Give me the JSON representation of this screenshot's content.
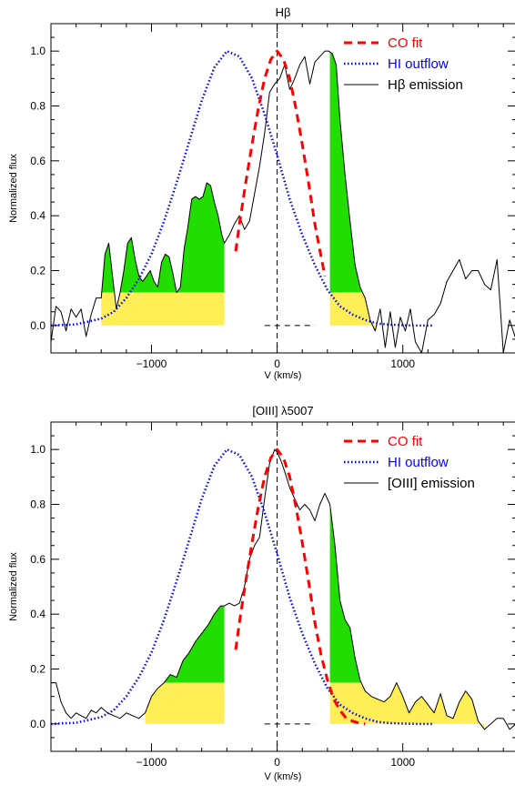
{
  "chart_data": [
    {
      "type": "line",
      "title": "Hβ",
      "xlabel": "V (km/s)",
      "ylabel": "Normalized flux",
      "xlim": [
        -1800,
        1900
      ],
      "ylim": [
        -0.1,
        1.1
      ],
      "xticks": [
        -1000,
        0,
        1000
      ],
      "xtick_labels": [
        "−1000",
        "0",
        "1000"
      ],
      "yticks": [
        0,
        0.2,
        0.4,
        0.6,
        0.8,
        1.0
      ],
      "ytick_labels": [
        "0.0",
        "0.2",
        "0.4",
        "0.6",
        "0.8",
        "1.0"
      ],
      "legend_position": "top-right",
      "zero_line_x": 0,
      "baseline_segment": {
        "x": [
          -100,
          300
        ],
        "y": 0
      },
      "colors": {
        "co": "#ff0000",
        "hi": "#0000ff",
        "emission": "#000000",
        "fill_green": "#22dd00",
        "fill_yellow": "#ffee55"
      },
      "shaded_regions": [
        {
          "x_range": [
            -1400,
            -420
          ],
          "yellow_top": 0.12
        },
        {
          "x_range": [
            420,
            800
          ],
          "yellow_top": 0.12
        }
      ],
      "series": [
        {
          "name": "CO fit",
          "style": "dashed",
          "color": "#ff0000",
          "x": [
            -330,
            -300,
            -250,
            -200,
            -150,
            -100,
            -50,
            0,
            50,
            100,
            150,
            200,
            250,
            300,
            350,
            380
          ],
          "y": [
            0.27,
            0.37,
            0.52,
            0.66,
            0.79,
            0.9,
            0.97,
            1.0,
            0.97,
            0.9,
            0.79,
            0.66,
            0.52,
            0.37,
            0.25,
            0.18
          ]
        },
        {
          "name": "HI outflow",
          "style": "dotted",
          "color": "#0000ff",
          "x": [
            -1800,
            -1600,
            -1400,
            -1300,
            -1200,
            -1100,
            -1000,
            -900,
            -800,
            -700,
            -600,
            -500,
            -400,
            -300,
            -200,
            -100,
            0,
            100,
            200,
            300,
            400,
            500,
            600,
            700,
            800,
            900,
            1000,
            1100,
            1250
          ],
          "y": [
            0,
            0.004,
            0.025,
            0.05,
            0.1,
            0.17,
            0.26,
            0.38,
            0.52,
            0.67,
            0.82,
            0.94,
            1.0,
            0.98,
            0.9,
            0.77,
            0.62,
            0.46,
            0.33,
            0.22,
            0.13,
            0.07,
            0.04,
            0.02,
            0.007,
            0.003,
            0.001,
            0.0,
            0.0
          ]
        },
        {
          "name": "Hβ emission",
          "style": "solid",
          "color": "#000000",
          "x": [
            -1800,
            -1760,
            -1720,
            -1680,
            -1640,
            -1600,
            -1560,
            -1520,
            -1480,
            -1440,
            -1400,
            -1370,
            -1340,
            -1310,
            -1280,
            -1250,
            -1220,
            -1190,
            -1160,
            -1130,
            -1100,
            -1070,
            -1040,
            -1010,
            -980,
            -950,
            -920,
            -890,
            -860,
            -830,
            -800,
            -770,
            -740,
            -710,
            -680,
            -650,
            -620,
            -590,
            -560,
            -530,
            -500,
            -470,
            -440,
            -420,
            -380,
            -340,
            -300,
            -260,
            -220,
            -180,
            -140,
            -100,
            -60,
            -20,
            20,
            60,
            100,
            140,
            180,
            220,
            260,
            300,
            340,
            380,
            410,
            440,
            470,
            500,
            540,
            580,
            620,
            660,
            700,
            740,
            780,
            820,
            860,
            900,
            940,
            980,
            1020,
            1060,
            1100,
            1150,
            1200,
            1250,
            1300,
            1350,
            1400,
            1450,
            1500,
            1550,
            1600,
            1650,
            1700,
            1750,
            1800,
            1850,
            1900
          ],
          "y": [
            -0.06,
            0.07,
            0.05,
            -0.02,
            0.06,
            0.03,
            0.06,
            -0.04,
            0.04,
            0.1,
            0.1,
            0.26,
            0.3,
            0.18,
            0.06,
            0.12,
            0.2,
            0.3,
            0.32,
            0.24,
            0.18,
            0.16,
            0.18,
            0.2,
            0.16,
            0.14,
            0.23,
            0.26,
            0.25,
            0.19,
            0.12,
            0.14,
            0.28,
            0.36,
            0.46,
            0.47,
            0.46,
            0.47,
            0.52,
            0.51,
            0.45,
            0.4,
            0.33,
            0.3,
            0.33,
            0.37,
            0.4,
            0.35,
            0.38,
            0.48,
            0.58,
            0.7,
            0.85,
            0.88,
            0.9,
            0.95,
            0.86,
            0.9,
            0.95,
            0.98,
            0.88,
            0.96,
            0.98,
            1.0,
            1.0,
            0.99,
            0.95,
            0.75,
            0.55,
            0.38,
            0.22,
            0.14,
            0.1,
            0.02,
            -0.02,
            0.06,
            -0.08,
            0.05,
            -0.08,
            0.03,
            -0.02,
            0.06,
            -0.06,
            -0.1,
            0.02,
            0.04,
            0.08,
            0.16,
            0.2,
            0.24,
            0.17,
            0.2,
            0.2,
            0.15,
            0.13,
            0.24,
            -0.12,
            0.02,
            -0.05
          ]
        }
      ]
    },
    {
      "type": "line",
      "title": "[OIII] λ5007",
      "xlabel": "V (km/s)",
      "ylabel": "Normalized flux",
      "xlim": [
        -1800,
        1900
      ],
      "ylim": [
        -0.1,
        1.1
      ],
      "xticks": [
        -1000,
        0,
        1000
      ],
      "xtick_labels": [
        "−1000",
        "0",
        "1000"
      ],
      "yticks": [
        0,
        0.2,
        0.4,
        0.6,
        0.8,
        1.0
      ],
      "ytick_labels": [
        "0.0",
        "0.2",
        "0.4",
        "0.6",
        "0.8",
        "1.0"
      ],
      "legend_position": "top-right",
      "zero_line_x": 0,
      "baseline_segment": {
        "x": [
          -100,
          300
        ],
        "y": 0
      },
      "colors": {
        "co": "#ff0000",
        "hi": "#0000ff",
        "emission": "#000000",
        "fill_green": "#22dd00",
        "fill_yellow": "#ffee55"
      },
      "shaded_regions": [
        {
          "x_range": [
            -1050,
            -420
          ],
          "yellow_top": 0.15
        },
        {
          "x_range": [
            420,
            1650
          ],
          "yellow_top": 0.15
        }
      ],
      "series": [
        {
          "name": "CO fit",
          "style": "dashed",
          "color": "#ff0000",
          "x": [
            -330,
            -300,
            -250,
            -200,
            -150,
            -100,
            -50,
            0,
            50,
            100,
            150,
            200,
            250,
            300,
            350,
            400,
            450,
            500,
            550,
            600,
            650,
            700
          ],
          "y": [
            0.27,
            0.37,
            0.52,
            0.66,
            0.79,
            0.9,
            0.97,
            1.0,
            0.97,
            0.9,
            0.79,
            0.66,
            0.52,
            0.37,
            0.25,
            0.16,
            0.09,
            0.05,
            0.02,
            0.01,
            0.003,
            0.0
          ]
        },
        {
          "name": "HI outflow",
          "style": "dotted",
          "color": "#0000ff",
          "x": [
            -1800,
            -1600,
            -1400,
            -1300,
            -1200,
            -1100,
            -1000,
            -900,
            -800,
            -700,
            -600,
            -500,
            -400,
            -300,
            -200,
            -100,
            0,
            100,
            200,
            300,
            400,
            500,
            600,
            700,
            800,
            900,
            1000,
            1100,
            1250
          ],
          "y": [
            0,
            0.004,
            0.025,
            0.05,
            0.1,
            0.17,
            0.26,
            0.38,
            0.52,
            0.67,
            0.82,
            0.94,
            1.0,
            0.98,
            0.9,
            0.77,
            0.62,
            0.46,
            0.33,
            0.22,
            0.13,
            0.07,
            0.04,
            0.02,
            0.007,
            0.003,
            0.001,
            0.0,
            0.0
          ]
        },
        {
          "name": "[OIII] emission",
          "style": "solid",
          "color": "#000000",
          "x": [
            -1800,
            -1760,
            -1720,
            -1680,
            -1640,
            -1600,
            -1560,
            -1520,
            -1480,
            -1440,
            -1400,
            -1350,
            -1300,
            -1250,
            -1200,
            -1150,
            -1100,
            -1050,
            -1000,
            -950,
            -900,
            -850,
            -800,
            -750,
            -700,
            -650,
            -600,
            -550,
            -500,
            -450,
            -420,
            -380,
            -340,
            -300,
            -260,
            -220,
            -180,
            -140,
            -100,
            -60,
            -20,
            0,
            30,
            60,
            100,
            140,
            180,
            220,
            260,
            300,
            340,
            380,
            420,
            460,
            500,
            540,
            580,
            620,
            660,
            700,
            750,
            800,
            850,
            900,
            950,
            1000,
            1050,
            1100,
            1150,
            1200,
            1250,
            1300,
            1350,
            1400,
            1450,
            1500,
            1550,
            1600,
            1650,
            1700,
            1750,
            1800,
            1850,
            1900
          ],
          "y": [
            0.15,
            0.15,
            0.08,
            0.04,
            0.02,
            0.04,
            0.03,
            0.02,
            0.05,
            0.04,
            0.06,
            0.04,
            0.03,
            0.02,
            0.04,
            0.03,
            0.02,
            0.04,
            0.1,
            0.13,
            0.15,
            0.18,
            0.17,
            0.23,
            0.26,
            0.3,
            0.33,
            0.36,
            0.4,
            0.43,
            0.43,
            0.44,
            0.43,
            0.44,
            0.5,
            0.6,
            0.65,
            0.68,
            0.82,
            0.95,
            1.0,
            0.99,
            0.96,
            0.92,
            0.86,
            0.82,
            0.78,
            0.8,
            0.78,
            0.74,
            0.8,
            0.84,
            0.8,
            0.65,
            0.45,
            0.38,
            0.35,
            0.24,
            0.16,
            0.12,
            0.1,
            0.09,
            0.08,
            0.1,
            0.15,
            0.1,
            0.04,
            0.08,
            0.1,
            0.07,
            0.04,
            0.11,
            0.03,
            0.02,
            0.08,
            0.12,
            0.09,
            0.01,
            -0.02,
            0.0,
            0.02,
            0.02,
            -0.02,
            0.0
          ]
        }
      ]
    }
  ]
}
